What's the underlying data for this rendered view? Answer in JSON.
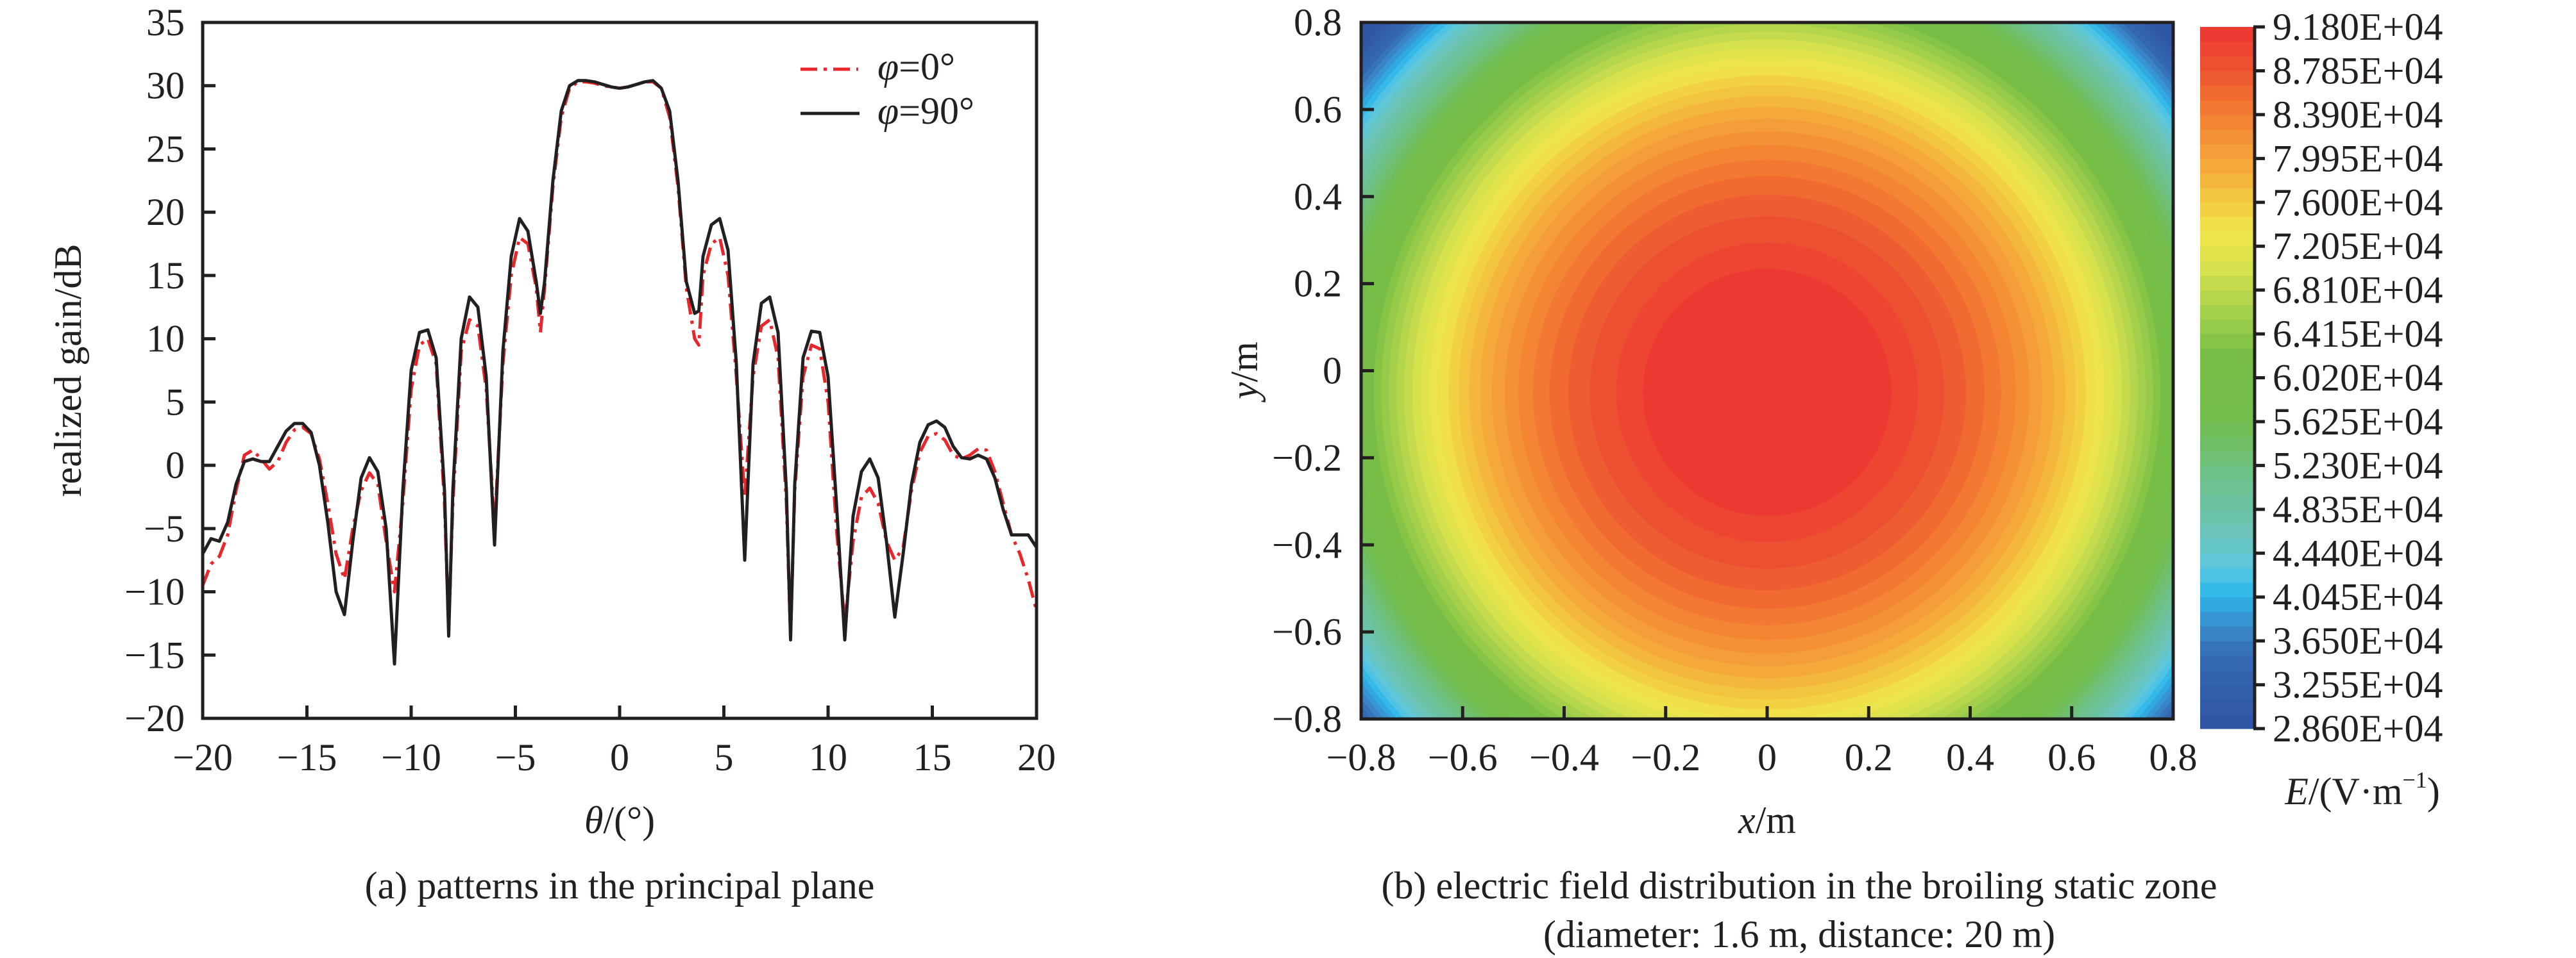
{
  "figure": {
    "panels": [
      "a",
      "b"
    ]
  },
  "chart_data": [
    {
      "type": "line",
      "panel": "a",
      "title": "",
      "caption": "(a) patterns in the principal plane",
      "xlabel_symbol": "θ",
      "xlabel_unit": "/(°)",
      "ylabel": "realized gain/dB",
      "xlim": [
        -20,
        20
      ],
      "ylim": [
        -20,
        35
      ],
      "xticks": [
        -20,
        -15,
        -10,
        -5,
        0,
        5,
        10,
        15,
        20
      ],
      "xtick_labels": [
        "−20",
        "−15",
        "−10",
        "−5",
        "0",
        "5",
        "10",
        "15",
        "20"
      ],
      "yticks": [
        -20,
        -15,
        -10,
        -5,
        0,
        5,
        10,
        15,
        20,
        25,
        30,
        35
      ],
      "ytick_labels": [
        "−20",
        "−15",
        "−10",
        "−5",
        "0",
        "5",
        "10",
        "15",
        "20",
        "25",
        "30",
        "35"
      ],
      "grid": false,
      "legend_position": "top-right",
      "series": [
        {
          "name": "φ=0°",
          "legend_symbol": "φ",
          "legend_rest": "=0°",
          "color": "#e8262b",
          "style": "dash-dot",
          "x": [
            -20,
            -19.6,
            -19.2,
            -18.8,
            -18.4,
            -18.0,
            -17.6,
            -17.2,
            -16.8,
            -16.4,
            -16.0,
            -15.6,
            -15.2,
            -14.8,
            -14.4,
            -14.0,
            -13.6,
            -13.2,
            -12.8,
            -12.4,
            -12.0,
            -11.6,
            -11.2,
            -10.8,
            -10.4,
            -10.0,
            -9.6,
            -9.2,
            -8.8,
            -8.4,
            -8.2,
            -8.0,
            -7.6,
            -7.2,
            -6.8,
            -6.4,
            -6.0,
            -5.6,
            -5.2,
            -4.8,
            -4.4,
            -4.0,
            -3.8,
            -3.6,
            -3.2,
            -2.8,
            -2.4,
            -2.0,
            -1.6,
            -1.2,
            -0.8,
            -0.4,
            0,
            0.4,
            0.8,
            1.2,
            1.6,
            2.0,
            2.4,
            2.8,
            3.2,
            3.6,
            3.8,
            4.0,
            4.4,
            4.8,
            5.2,
            5.6,
            6.0,
            6.4,
            6.8,
            7.2,
            7.6,
            8.0,
            8.2,
            8.4,
            8.8,
            9.2,
            9.6,
            10.0,
            10.4,
            10.8,
            11.2,
            11.6,
            12.0,
            12.4,
            12.8,
            13.2,
            13.6,
            14.0,
            14.4,
            14.8,
            15.2,
            15.6,
            16.0,
            16.4,
            16.8,
            17.2,
            17.6,
            18.0,
            18.4,
            18.8,
            19.2,
            19.6,
            20
          ],
          "y": [
            -9.5,
            -7.8,
            -7.2,
            -5.5,
            -2.0,
            0.8,
            1.2,
            0.5,
            -0.3,
            0.3,
            1.8,
            2.8,
            3.0,
            2.5,
            0.5,
            -3.0,
            -7.0,
            -9.0,
            -5.0,
            -2.0,
            -0.6,
            -1.5,
            -6.0,
            -10.0,
            -3.0,
            6.0,
            9.5,
            10.0,
            8.0,
            -3.0,
            -13.0,
            -3.0,
            9.0,
            11.5,
            11.0,
            6.0,
            -5.0,
            8.0,
            15.0,
            18.0,
            17.5,
            14.0,
            10.5,
            14.0,
            22.0,
            27.5,
            29.8,
            30.3,
            30.3,
            30.2,
            30.0,
            29.9,
            29.8,
            29.9,
            30.1,
            30.3,
            30.3,
            29.8,
            27.5,
            22.0,
            14.0,
            10.0,
            9.5,
            15.0,
            17.5,
            18.0,
            15.0,
            7.0,
            -2.5,
            7.0,
            11.0,
            11.5,
            8.5,
            -3.0,
            -13.5,
            -2.0,
            7.0,
            9.5,
            9.2,
            5.0,
            -5.0,
            -12.5,
            -6.0,
            -2.5,
            -1.8,
            -3.0,
            -6.0,
            -7.5,
            -6.5,
            -2.0,
            1.0,
            2.3,
            2.5,
            2.0,
            0.8,
            0.5,
            0.8,
            1.3,
            1.2,
            -0.5,
            -3.0,
            -5.5,
            -7.0,
            -9.0,
            -11.5
          ]
        },
        {
          "name": "φ=90°",
          "legend_symbol": "φ",
          "legend_rest": "=90°",
          "color": "#231f20",
          "style": "solid",
          "x": [
            -20,
            -19.6,
            -19.2,
            -18.8,
            -18.4,
            -18.0,
            -17.6,
            -17.2,
            -16.8,
            -16.4,
            -16.0,
            -15.6,
            -15.2,
            -14.8,
            -14.4,
            -14.0,
            -13.6,
            -13.2,
            -12.8,
            -12.4,
            -12.0,
            -11.6,
            -11.2,
            -10.8,
            -10.4,
            -10.0,
            -9.6,
            -9.2,
            -8.8,
            -8.4,
            -8.2,
            -8.0,
            -7.6,
            -7.2,
            -6.8,
            -6.4,
            -6.0,
            -5.6,
            -5.2,
            -4.8,
            -4.4,
            -4.0,
            -3.8,
            -3.6,
            -3.2,
            -2.8,
            -2.4,
            -2.0,
            -1.6,
            -1.2,
            -0.8,
            -0.4,
            0,
            0.4,
            0.8,
            1.2,
            1.6,
            2.0,
            2.4,
            2.8,
            3.2,
            3.6,
            3.8,
            4.0,
            4.4,
            4.8,
            5.2,
            5.6,
            6.0,
            6.4,
            6.8,
            7.2,
            7.6,
            8.0,
            8.2,
            8.4,
            8.8,
            9.2,
            9.6,
            10.0,
            10.4,
            10.8,
            11.2,
            11.6,
            12.0,
            12.4,
            12.8,
            13.2,
            13.6,
            14.0,
            14.4,
            14.8,
            15.2,
            15.6,
            16.0,
            16.4,
            16.8,
            17.2,
            17.6,
            18.0,
            18.4,
            18.8,
            19.2,
            19.6,
            20
          ],
          "y": [
            -7.0,
            -5.8,
            -6.0,
            -4.5,
            -1.5,
            0.3,
            0.5,
            0.3,
            0.3,
            1.5,
            2.7,
            3.3,
            3.3,
            2.6,
            0.0,
            -4.5,
            -10.0,
            -11.8,
            -6.0,
            -1.0,
            0.6,
            -0.5,
            -5.0,
            -15.7,
            -2.0,
            7.5,
            10.5,
            10.7,
            8.5,
            -2.0,
            -13.5,
            -2.0,
            10.0,
            13.3,
            12.5,
            7.0,
            -6.3,
            9.0,
            16.5,
            19.5,
            18.5,
            14.5,
            12.0,
            14.5,
            22.5,
            28.0,
            30.0,
            30.4,
            30.4,
            30.3,
            30.1,
            29.9,
            29.8,
            29.9,
            30.1,
            30.3,
            30.4,
            29.8,
            28.0,
            22.5,
            14.5,
            12.0,
            12.2,
            16.5,
            19.0,
            19.5,
            17.0,
            8.0,
            -7.5,
            8.0,
            12.8,
            13.3,
            10.5,
            -2.0,
            -13.8,
            -1.5,
            8.5,
            10.6,
            10.5,
            7.0,
            -3.0,
            -13.8,
            -4.0,
            -0.5,
            0.5,
            -1.0,
            -6.0,
            -12.0,
            -7.0,
            -1.5,
            1.8,
            3.2,
            3.5,
            3.0,
            1.5,
            0.6,
            0.5,
            0.8,
            0.5,
            -1.0,
            -3.5,
            -5.5,
            -5.5,
            -5.5,
            -6.5
          ]
        }
      ]
    },
    {
      "type": "heatmap",
      "panel": "b",
      "title": "",
      "caption_line1": "(b) electric field distribution in the broiling static zone",
      "caption_line2": "(diameter: 1.6 m, distance: 20 m)",
      "xlabel_symbol": "x",
      "xlabel_unit": "/m",
      "ylabel_symbol": "y",
      "ylabel_unit": "/m",
      "xlim": [
        -0.8,
        0.8
      ],
      "ylim": [
        -0.8,
        0.8
      ],
      "xticks": [
        -0.8,
        -0.6,
        -0.4,
        -0.2,
        0,
        0.2,
        0.4,
        0.6,
        0.8
      ],
      "xtick_labels": [
        "−0.8",
        "−0.6",
        "−0.4",
        "−0.2",
        "0",
        "0.2",
        "0.4",
        "0.6",
        "0.8"
      ],
      "yticks": [
        -0.8,
        -0.6,
        -0.4,
        -0.2,
        0,
        0.2,
        0.4,
        0.6,
        0.8
      ],
      "ytick_labels": [
        "−0.8",
        "−0.6",
        "−0.4",
        "−0.2",
        "0",
        "0.2",
        "0.4",
        "0.6",
        "0.8"
      ],
      "grid": false,
      "field_summary": {
        "peak_value": 91800,
        "peak_location": [
          0.0,
          -0.05
        ],
        "min_value": 28600,
        "min_location": "corners",
        "shape": "elliptical, slightly elongated vertically"
      },
      "colorbar": {
        "label_symbol": "E",
        "label_unit": "/(V·m",
        "label_exp": "−1",
        "label_close": ")",
        "min": 28600,
        "max": 91800,
        "bands_per_tick": 3,
        "tick_values": [
          91800,
          87850,
          83900,
          79950,
          76000,
          72050,
          68100,
          64150,
          60200,
          56250,
          52300,
          48350,
          44400,
          40450,
          36500,
          32550,
          28600
        ],
        "tick_labels": [
          "9.180E+04",
          "8.785E+04",
          "8.390E+04",
          "7.995E+04",
          "7.600E+04",
          "7.205E+04",
          "6.810E+04",
          "6.415E+04",
          "6.020E+04",
          "5.625E+04",
          "5.230E+04",
          "4.835E+04",
          "4.440E+04",
          "4.045E+04",
          "3.650E+04",
          "3.255E+04",
          "2.860E+04"
        ],
        "colormap": [
          [
            0.0,
            "#2f55a4"
          ],
          [
            0.1,
            "#3468b2"
          ],
          [
            0.15,
            "#3a8fcf"
          ],
          [
            0.19,
            "#2bb6ea"
          ],
          [
            0.23,
            "#5cc8e0"
          ],
          [
            0.28,
            "#6bc4b8"
          ],
          [
            0.36,
            "#6dc08a"
          ],
          [
            0.44,
            "#72bd4c"
          ],
          [
            0.53,
            "#77be46"
          ],
          [
            0.6,
            "#a8d14c"
          ],
          [
            0.66,
            "#d9e24e"
          ],
          [
            0.71,
            "#f1e64a"
          ],
          [
            0.76,
            "#f2c43f"
          ],
          [
            0.81,
            "#f6a43a"
          ],
          [
            0.87,
            "#f38234"
          ],
          [
            0.93,
            "#ee5a31"
          ],
          [
            1.0,
            "#ec3432"
          ]
        ]
      }
    }
  ]
}
